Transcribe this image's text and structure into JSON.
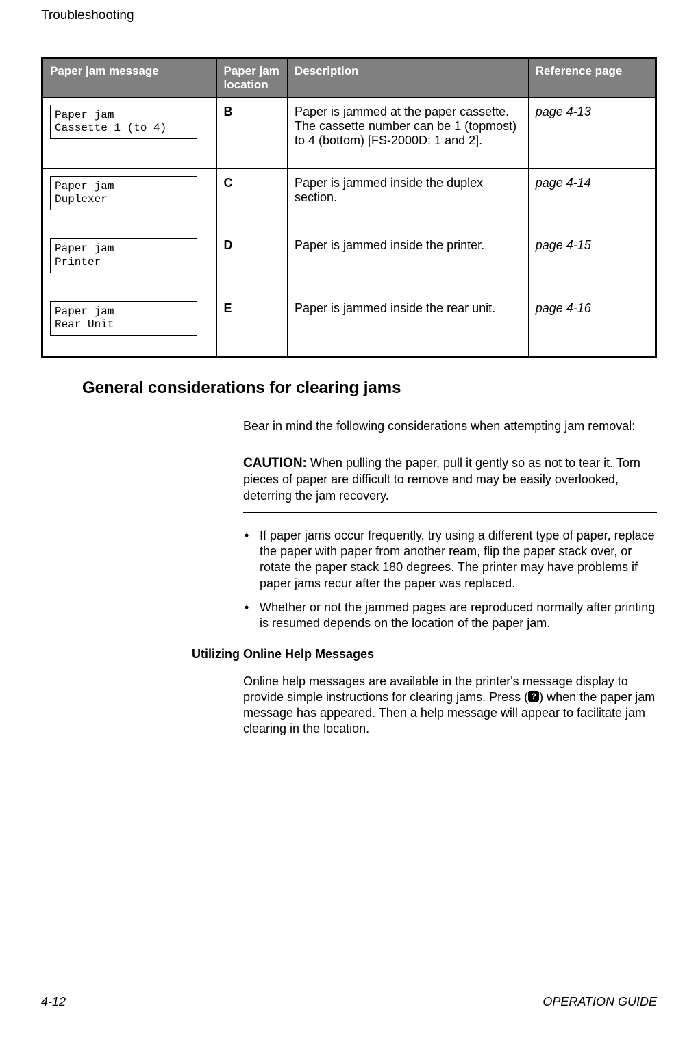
{
  "header": {
    "title": "Troubleshooting"
  },
  "table": {
    "headers": {
      "message": "Paper jam message",
      "location": "Paper jam location",
      "description": "Description",
      "reference": "Reference page"
    },
    "rows": [
      {
        "msg_line1": "Paper jam",
        "msg_line2": "Cassette 1 (to 4)",
        "location": "B",
        "description": "Paper is jammed at the paper cassette. The cassette number can be 1 (topmost) to 4 (bottom) [FS-2000D: 1 and 2].",
        "reference": "page 4-13"
      },
      {
        "msg_line1": "Paper jam",
        "msg_line2": "Duplexer",
        "location": "C",
        "description": "Paper is jammed inside the duplex section.",
        "reference": "page 4-14"
      },
      {
        "msg_line1": "Paper jam",
        "msg_line2": "Printer",
        "location": "D",
        "description": "Paper is jammed inside the printer.",
        "reference": "page 4-15"
      },
      {
        "msg_line1": "Paper jam",
        "msg_line2": "Rear Unit",
        "location": "E",
        "description": "Paper is jammed inside the rear unit.",
        "reference": "page 4-16"
      }
    ]
  },
  "section_heading": "General considerations for clearing jams",
  "intro_text": "Bear in mind the following considerations when attempting jam removal:",
  "caution": {
    "label": "CAUTION:",
    "text": " When pulling the paper, pull it gently so as not to tear it. Torn pieces of paper are difficult to remove and may be easily overlooked, deterring the jam recovery."
  },
  "bullets": [
    "If paper jams occur frequently, try using a different type of paper, replace the paper with paper from another ream, flip the paper stack over, or rotate the paper stack 180 degrees. The printer may have problems if paper jams recur after the paper was replaced.",
    "Whether or not the jammed pages are reproduced normally after printing is resumed depends on the location of the paper jam."
  ],
  "subheading": "Utilizing Online Help Messages",
  "help_text_1": "Online help messages are available in the printer's message display to provide simple instructions for clearing jams. Press (",
  "help_icon": "?",
  "help_text_2": ") when the paper jam message has appeared. Then a help message will appear to facilitate jam clearing in the location.",
  "footer": {
    "page": "4-12",
    "guide": "OPERATION GUIDE"
  },
  "colors": {
    "header_bg": "#808080",
    "header_text": "#ffffff",
    "border": "#000000",
    "text": "#000000",
    "background": "#ffffff"
  }
}
